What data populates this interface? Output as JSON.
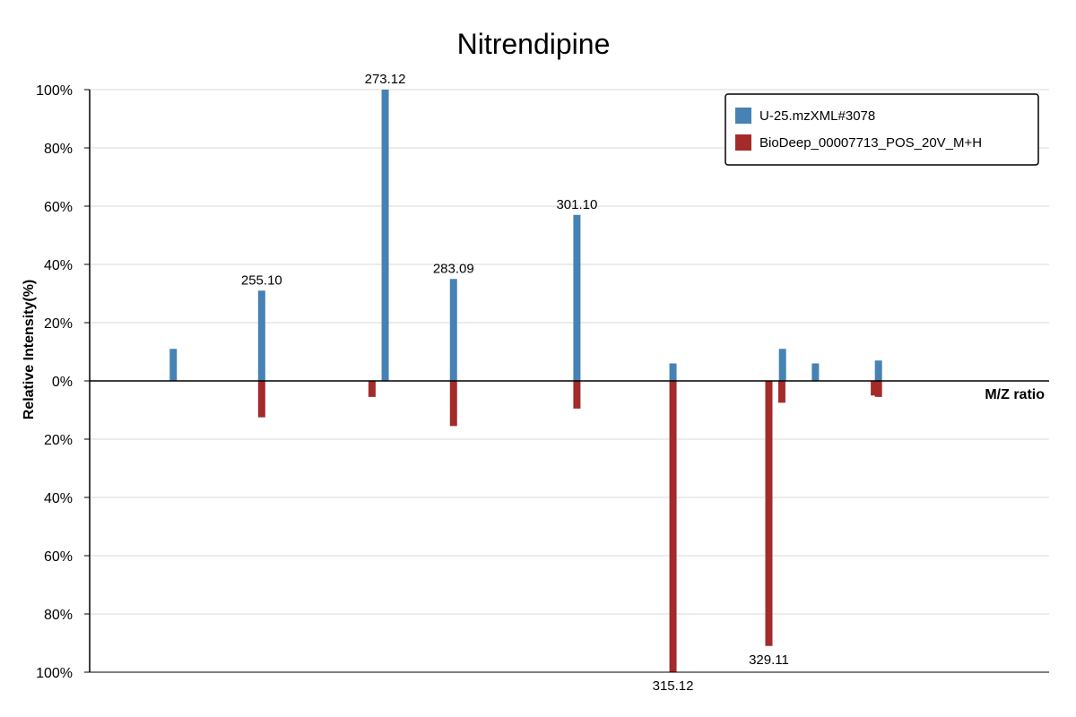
{
  "chart_data": {
    "type": "bar",
    "title": "Nitrendipine",
    "xlabel": "M/Z ratio",
    "ylabel": "Relative Intensity(%)",
    "x_range": [
      230,
      370
    ],
    "y_ticks": [
      {
        "value": 100,
        "label": "100%"
      },
      {
        "value": 80,
        "label": "80%"
      },
      {
        "value": 60,
        "label": "60%"
      },
      {
        "value": 40,
        "label": "40%"
      },
      {
        "value": 20,
        "label": "20%"
      },
      {
        "value": 0,
        "label": "0%"
      },
      {
        "value": -20,
        "label": "20%"
      },
      {
        "value": -40,
        "label": "40%"
      },
      {
        "value": -60,
        "label": "60%"
      },
      {
        "value": -80,
        "label": "80%"
      },
      {
        "value": -100,
        "label": "100%"
      }
    ],
    "ylim": [
      -100,
      100
    ],
    "grid": true,
    "legend_position": "top-right",
    "series": [
      {
        "name": "U-25.mzXML#3078",
        "color": "#4682b4",
        "direction": "up",
        "peaks": [
          {
            "mz": 242.2,
            "intensity": 11,
            "label": ""
          },
          {
            "mz": 255.1,
            "intensity": 31,
            "label": "255.10"
          },
          {
            "mz": 273.12,
            "intensity": 100,
            "label": "273.12"
          },
          {
            "mz": 283.09,
            "intensity": 35,
            "label": "283.09"
          },
          {
            "mz": 301.1,
            "intensity": 57,
            "label": "301.10"
          },
          {
            "mz": 315.12,
            "intensity": 6,
            "label": ""
          },
          {
            "mz": 331.1,
            "intensity": 11,
            "label": ""
          },
          {
            "mz": 335.9,
            "intensity": 6,
            "label": ""
          },
          {
            "mz": 345.1,
            "intensity": 7,
            "label": ""
          }
        ]
      },
      {
        "name": "BioDeep_00007713_POS_20V_M+H",
        "color": "#a52a2a",
        "direction": "down",
        "peaks": [
          {
            "mz": 255.1,
            "intensity": 12.5,
            "label": ""
          },
          {
            "mz": 271.2,
            "intensity": 5.5,
            "label": ""
          },
          {
            "mz": 283.09,
            "intensity": 15.5,
            "label": ""
          },
          {
            "mz": 301.1,
            "intensity": 9.5,
            "label": ""
          },
          {
            "mz": 315.12,
            "intensity": 100,
            "label": "315.12"
          },
          {
            "mz": 329.11,
            "intensity": 91,
            "label": "329.11"
          },
          {
            "mz": 331.0,
            "intensity": 7.5,
            "label": ""
          },
          {
            "mz": 344.5,
            "intensity": 5,
            "label": ""
          },
          {
            "mz": 345.1,
            "intensity": 5.5,
            "label": ""
          }
        ]
      }
    ]
  }
}
